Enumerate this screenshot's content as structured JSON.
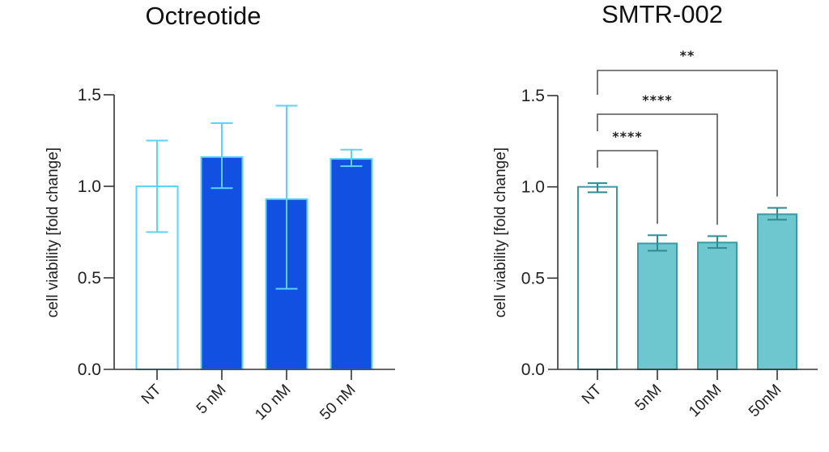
{
  "chart_data": [
    {
      "type": "bar",
      "title": "Octreotide",
      "xlabel": "",
      "ylabel": "cell viability [fold change]",
      "ylim": [
        0,
        1.5
      ],
      "yticks": [
        "0.0",
        "0.5",
        "1.0",
        "1.5"
      ],
      "ytick_values": [
        0,
        0.5,
        1.0,
        1.5
      ],
      "categories": [
        "NT",
        "5 nM",
        "10 nM",
        "50 nM"
      ],
      "values": [
        1.0,
        1.16,
        0.93,
        1.15
      ],
      "error_lower": [
        0.75,
        0.99,
        0.44,
        1.11
      ],
      "error_upper": [
        1.25,
        1.345,
        1.44,
        1.2
      ],
      "fills": [
        "#ffffff",
        "#1150e0",
        "#1150e0",
        "#1150e0"
      ],
      "stroke": "#5cd3f7",
      "error_color": "#5cd3f7",
      "grid": false,
      "significance": []
    },
    {
      "type": "bar",
      "title": "SMTR-002",
      "xlabel": "",
      "ylabel": "cell viability [fold change]",
      "ylim": [
        0,
        1.5
      ],
      "yticks": [
        "0.0",
        "0.5",
        "1.0",
        "1.5"
      ],
      "ytick_values": [
        0,
        0.5,
        1.0,
        1.5
      ],
      "categories": [
        "NT",
        "5nM",
        "10nM",
        "50nM"
      ],
      "values": [
        1.0,
        0.69,
        0.695,
        0.85
      ],
      "error_lower": [
        0.97,
        0.65,
        0.665,
        0.82
      ],
      "error_upper": [
        1.02,
        0.735,
        0.73,
        0.885
      ],
      "fills": [
        "#ffffff",
        "#6ec6ce",
        "#6ec6ce",
        "#6ec6ce"
      ],
      "stroke": "#3c9aa5",
      "error_color": "#2f8a94",
      "grid": false,
      "significance": [
        {
          "from": 0,
          "to": 1,
          "label": "****"
        },
        {
          "from": 0,
          "to": 2,
          "label": "****"
        },
        {
          "from": 0,
          "to": 3,
          "label": "**"
        }
      ]
    }
  ]
}
